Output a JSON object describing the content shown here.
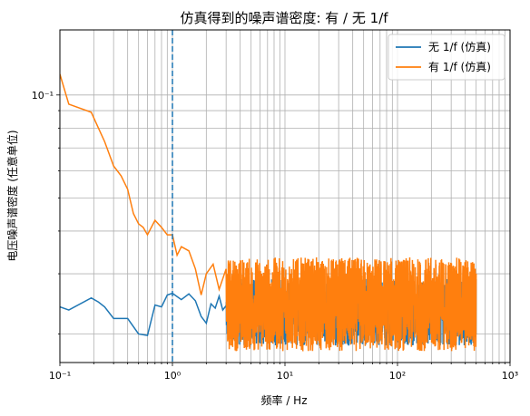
{
  "chart_data": {
    "type": "line",
    "title": "仿真得到的噪声谱密度: 有 / 无 1/f",
    "xlabel": "频率 / Hz",
    "ylabel": "电压噪声谱密度 (任意单位)",
    "xscale": "log",
    "yscale": "log",
    "xlim": [
      0.1,
      1000
    ],
    "ylim": [
      0.0165,
      0.155
    ],
    "xticks": [
      0.1,
      1,
      10,
      100,
      1000
    ],
    "xtick_labels": [
      "10⁻¹",
      "10⁰",
      "10¹",
      "10²",
      "10³"
    ],
    "yticks": [
      0.1
    ],
    "ytick_labels": [
      "10⁻¹"
    ],
    "grid": true,
    "legend_position": "top-right",
    "vline": {
      "x": 1,
      "style": "dashed",
      "color": "#1f77b4"
    },
    "series": [
      {
        "name": "无 1/f (仿真)",
        "color": "#1f77b4",
        "low_freq_points": {
          "x": [
            0.1,
            0.12,
            0.19,
            0.22,
            0.25,
            0.3,
            0.4,
            0.5,
            0.6,
            0.7,
            0.8,
            0.9,
            1.0,
            1.2,
            1.4,
            1.6,
            1.8,
            2.0,
            2.2,
            2.4,
            2.6,
            2.8,
            3.0
          ],
          "y": [
            0.024,
            0.0235,
            0.0255,
            0.0248,
            0.024,
            0.0222,
            0.0222,
            0.02,
            0.0198,
            0.0243,
            0.024,
            0.026,
            0.0263,
            0.0252,
            0.0262,
            0.025,
            0.0225,
            0.0215,
            0.0245,
            0.0238,
            0.0258,
            0.0235,
            0.0242
          ]
        },
        "noise_band": {
          "x_start": 3.0,
          "x_end": 500,
          "y_min": 0.0185,
          "y_max": 0.029
        }
      },
      {
        "name": "有 1/f (仿真)",
        "color": "#ff7f0e",
        "low_freq_points": {
          "x": [
            0.1,
            0.12,
            0.19,
            0.22,
            0.25,
            0.3,
            0.35,
            0.4,
            0.45,
            0.5,
            0.55,
            0.6,
            0.7,
            0.8,
            0.9,
            1.0,
            1.1,
            1.2,
            1.4,
            1.6,
            1.8,
            2.0,
            2.3,
            2.6,
            3.0
          ],
          "y": [
            0.115,
            0.094,
            0.089,
            0.08,
            0.073,
            0.062,
            0.058,
            0.053,
            0.045,
            0.042,
            0.041,
            0.039,
            0.043,
            0.041,
            0.039,
            0.039,
            0.034,
            0.036,
            0.035,
            0.031,
            0.026,
            0.03,
            0.032,
            0.027,
            0.031
          ]
        },
        "noise_band": {
          "x_start": 3.0,
          "x_end": 500,
          "y_min": 0.0178,
          "y_max": 0.0335
        }
      }
    ]
  }
}
